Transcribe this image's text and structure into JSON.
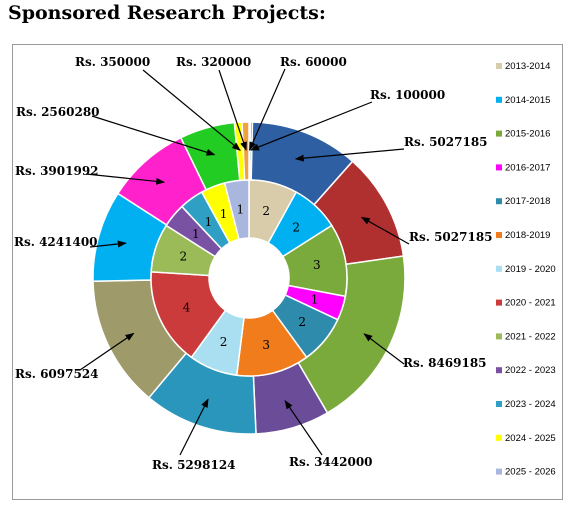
{
  "title": "Sponsored Research Projects:",
  "chart_data": {
    "type": "donut",
    "categories": [
      "2013-2014",
      "2014-2015",
      "2015-2016",
      "2016-2017",
      "2017-2018",
      "2018-2019",
      "2019 - 2020",
      "2020 - 2021",
      "2021 - 2022",
      "2022 - 2023",
      "2023 - 2024",
      "2024 - 2025",
      "2025 - 2026"
    ],
    "colors": [
      "#d9ccaa",
      "#00b0f0",
      "#7aaa3c",
      "#ff00ff",
      "#2e8bab",
      "#f07c1c",
      "#a9dff0",
      "#cc3b3b",
      "#9bbb59",
      "#7952a3",
      "#2f9fc3",
      "#ffff00",
      "#a9b6dd"
    ],
    "series": [
      {
        "values": [
          2,
          2,
          3,
          1,
          2,
          3,
          2,
          4,
          2,
          1,
          1,
          1,
          1
        ]
      },
      {
        "values": [
          60000,
          100000,
          5027185,
          5027185,
          8469185,
          3442000,
          5298124,
          6097524,
          4241400,
          3901992,
          2560280,
          350000,
          320000
        ],
        "labels": [
          "Rs. 60000",
          "Rs. 100000",
          "Rs. 5027185",
          "Rs. 5027185",
          "Rs. 8469185",
          "Rs. 3442000",
          "Rs. 5298124",
          "Rs. 6097524",
          "Rs. 4241400",
          "Rs. 3901992",
          "Rs. 2560280",
          "Rs. 350000",
          "Rs. 320000"
        ],
        "colors": [
          "#cc3b3b",
          "#2f9fc3",
          "#2f5fa3",
          "#b03030",
          "#7aaa3c",
          "#6a4c98",
          "#2a96bb",
          "#9e9a6a",
          "#00b0f0",
          "#ff22cc",
          "#22cc22",
          "#ffff00",
          "#f0a040"
        ]
      }
    ],
    "legend_position": "right"
  }
}
